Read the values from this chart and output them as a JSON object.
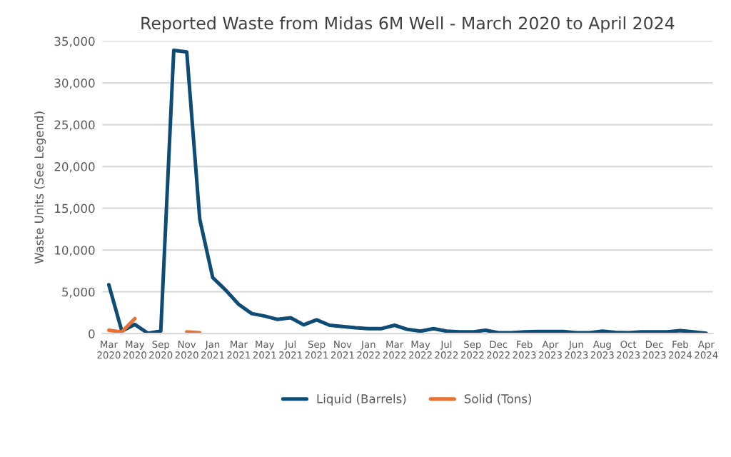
{
  "chart_data": {
    "type": "line",
    "title": "Reported Waste from Midas 6M Well - March 2020 to April 2024",
    "ylabel": "Waste Units (See Legend)",
    "categories": [
      "Mar 2020",
      null,
      "May 2020",
      null,
      "Sep 2020",
      null,
      "Nov 2020",
      null,
      "Jan 2021",
      null,
      "Mar 2021",
      null,
      "May 2021",
      null,
      "Jul 2021",
      null,
      "Sep 2021",
      null,
      "Nov 2021",
      null,
      "Jan 2022",
      null,
      "Mar 2022",
      null,
      "May 2022",
      null,
      "Jul 2022",
      null,
      "Sep 2022",
      null,
      "Dec 2022",
      null,
      "Feb 2023",
      null,
      "Apr 2023",
      null,
      "Jun 2023",
      null,
      "Aug 2023",
      null,
      "Oct 2023",
      null,
      "Dec 2023",
      null,
      "Feb 2024",
      null,
      "Apr 2024"
    ],
    "series": [
      {
        "name": "Liquid (Barrels)",
        "color": "#0f4c75",
        "values": [
          5850,
          300,
          1100,
          50,
          300,
          33900,
          33700,
          13700,
          6700,
          5200,
          3500,
          2400,
          2100,
          1700,
          1900,
          1050,
          1650,
          1000,
          850,
          700,
          600,
          600,
          1000,
          500,
          300,
          600,
          300,
          200,
          200,
          400,
          100,
          100,
          200,
          250,
          250,
          250,
          100,
          100,
          300,
          150,
          100,
          200,
          200,
          200,
          350,
          200,
          50
        ]
      },
      {
        "name": "Solid (Tons)",
        "color": "#e97132",
        "values": [
          400,
          200,
          1800,
          null,
          null,
          null,
          200,
          100,
          null,
          null,
          null,
          null,
          null,
          null,
          null,
          null,
          null,
          null,
          null,
          null,
          null,
          null,
          null,
          null,
          null,
          null,
          null,
          null,
          null,
          null,
          null,
          null,
          null,
          null,
          null,
          null,
          null,
          null,
          null,
          null,
          null,
          null,
          null,
          null,
          null,
          null,
          null
        ]
      }
    ],
    "ylim": [
      0,
      35000
    ],
    "yticks": [
      0,
      {
        "value": 5000,
        "label": "5,000"
      },
      {
        "value": 10000,
        "label": "10,000"
      },
      {
        "value": 15000,
        "label": "15,000"
      },
      {
        "value": 20000,
        "label": "20,000"
      },
      {
        "value": 25000,
        "label": "25,000"
      },
      {
        "value": 30000,
        "label": "30,000"
      },
      {
        "value": 35000,
        "label": "35,000"
      }
    ],
    "grid": "y",
    "legend": "bottom",
    "line_style": "solid",
    "marker": "none"
  }
}
